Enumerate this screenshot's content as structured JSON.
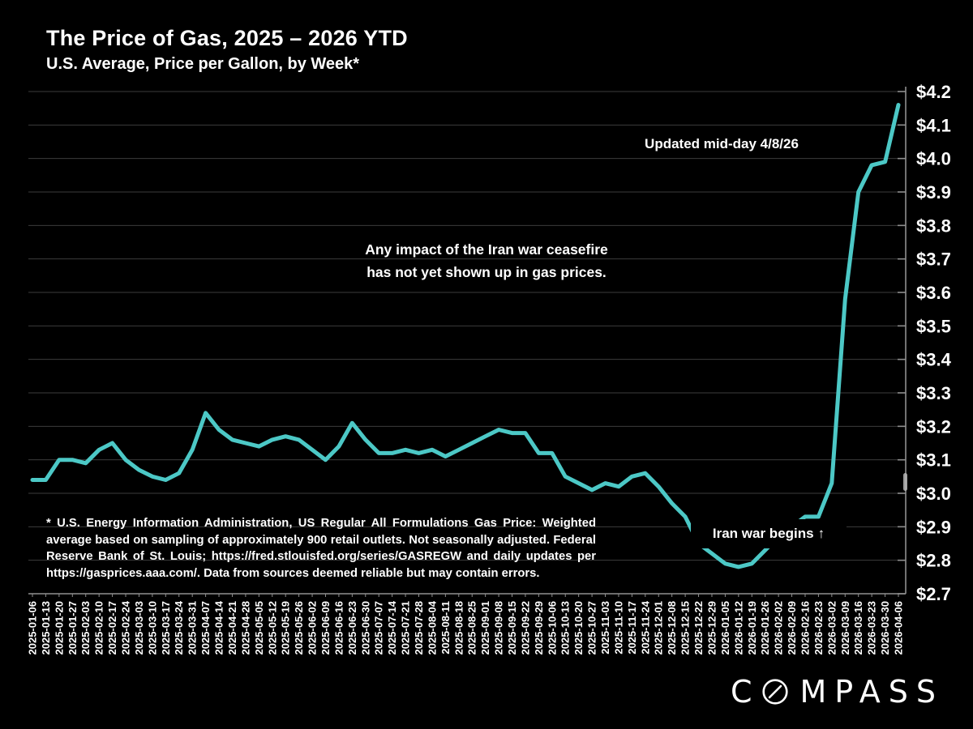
{
  "page": {
    "background": "#000000",
    "text_color": "#FFFFFF"
  },
  "header": {
    "title": "The Price of Gas, 2025 – 2026 YTD",
    "subtitle": "U.S. Average, Price per Gallon, by Week*"
  },
  "annotations": {
    "updated": "Updated mid-day 4/8/26",
    "ceasefire_line1": "Any impact of the Iran war ceasefire",
    "ceasefire_line2": "has not yet shown up in gas prices.",
    "war_begins": "Iran war begins",
    "war_begins_arrow": "↑"
  },
  "footnote": "* U.S. Energy Information Administration, US Regular All Formulations Gas Price: Weighted average based on sampling of approximately 900 retail outlets. Not seasonally adjusted. Federal Reserve Bank of St. Louis; https://fred.stlouisfed.org/series/GASREGW and daily updates per https://gasprices.aaa.com/. Data from sources deemed reliable but may contain errors.",
  "logo": {
    "prefix": "C",
    "suffix": "MPASS",
    "o_icon": "compass-needle-o"
  },
  "chart_data": {
    "type": "line",
    "title": "The Price of Gas, 2025 – 2026 YTD",
    "xlabel": "",
    "ylabel": "",
    "grid": true,
    "legend": "none",
    "ylim": [
      2.7,
      4.2
    ],
    "line_color": "#4CC8C6",
    "grid_color": "#3C3C3C",
    "axis_color": "#8F8F8F",
    "label_color": "#FFFFFF",
    "y_ticks": [
      {
        "value": 2.7,
        "label": "$2.7"
      },
      {
        "value": 2.8,
        "label": "$2.8"
      },
      {
        "value": 2.9,
        "label": "$2.9"
      },
      {
        "value": 3.0,
        "label": "$3.0"
      },
      {
        "value": 3.1,
        "label": "$3.1"
      },
      {
        "value": 3.2,
        "label": "$3.2"
      },
      {
        "value": 3.3,
        "label": "$3.3"
      },
      {
        "value": 3.4,
        "label": "$3.4"
      },
      {
        "value": 3.5,
        "label": "$3.5"
      },
      {
        "value": 3.6,
        "label": "$3.6"
      },
      {
        "value": 3.7,
        "label": "$3.7"
      },
      {
        "value": 3.8,
        "label": "$3.8"
      },
      {
        "value": 3.9,
        "label": "$3.9"
      },
      {
        "value": 4.0,
        "label": "$4.0"
      },
      {
        "value": 4.1,
        "label": "$4.1"
      },
      {
        "value": 4.2,
        "label": "$4.2"
      }
    ],
    "x": [
      "2025-01-06",
      "2025-01-13",
      "2025-01-20",
      "2025-01-27",
      "2025-02-03",
      "2025-02-10",
      "2025-02-17",
      "2025-02-24",
      "2025-03-03",
      "2025-03-10",
      "2025-03-17",
      "2025-03-24",
      "2025-03-31",
      "2025-04-07",
      "2025-04-14",
      "2025-04-21",
      "2025-04-28",
      "2025-05-05",
      "2025-05-12",
      "2025-05-19",
      "2025-05-26",
      "2025-06-02",
      "2025-06-09",
      "2025-06-16",
      "2025-06-23",
      "2025-06-30",
      "2025-07-07",
      "2025-07-14",
      "2025-07-21",
      "2025-07-28",
      "2025-08-04",
      "2025-08-11",
      "2025-08-18",
      "2025-08-25",
      "2025-09-01",
      "2025-09-08",
      "2025-09-15",
      "2025-09-22",
      "2025-09-29",
      "2025-10-06",
      "2025-10-13",
      "2025-10-20",
      "2025-10-27",
      "2025-11-03",
      "2025-11-10",
      "2025-11-17",
      "2025-11-24",
      "2025-12-01",
      "2025-12-08",
      "2025-12-15",
      "2025-12-22",
      "2025-12-29",
      "2026-01-05",
      "2026-01-12",
      "2026-01-19",
      "2026-01-26",
      "2026-02-02",
      "2026-02-09",
      "2026-02-16",
      "2026-02-23",
      "2026-03-02",
      "2026-03-09",
      "2026-03-16",
      "2026-03-23",
      "2026-03-30",
      "2026-04-06"
    ],
    "values": [
      3.04,
      3.04,
      3.1,
      3.1,
      3.09,
      3.13,
      3.15,
      3.1,
      3.07,
      3.05,
      3.04,
      3.06,
      3.13,
      3.24,
      3.19,
      3.16,
      3.15,
      3.14,
      3.16,
      3.17,
      3.16,
      3.13,
      3.1,
      3.14,
      3.21,
      3.16,
      3.12,
      3.12,
      3.13,
      3.12,
      3.13,
      3.11,
      3.13,
      3.15,
      3.17,
      3.19,
      3.18,
      3.18,
      3.12,
      3.12,
      3.05,
      3.03,
      3.01,
      3.03,
      3.02,
      3.05,
      3.06,
      3.02,
      2.97,
      2.93,
      2.85,
      2.82,
      2.79,
      2.78,
      2.79,
      2.83,
      2.87,
      2.9,
      2.93,
      2.93,
      3.03,
      3.58,
      3.9,
      3.98,
      3.99,
      4.16
    ]
  }
}
